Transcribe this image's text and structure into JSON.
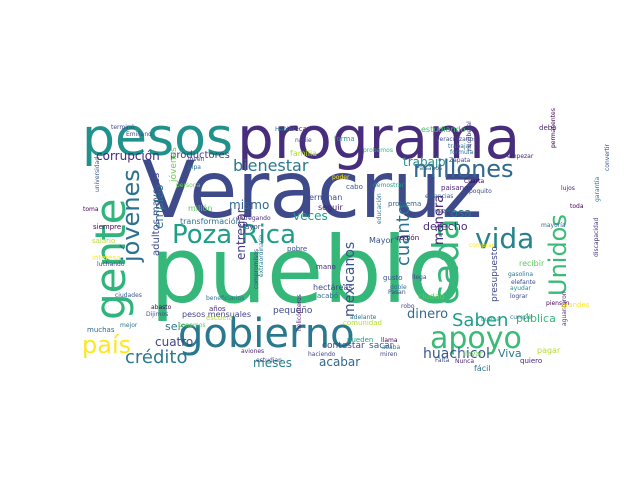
{
  "title": "",
  "words": [
    {
      "text": "pueblo",
      "color": "#35b779"
    },
    {
      "text": "Veracruz",
      "color": "#3e4a89"
    },
    {
      "text": "programa",
      "color": "#472d7b"
    },
    {
      "text": "pesos",
      "color": "#21918c"
    },
    {
      "text": "gobierno",
      "color": "#2a788e"
    },
    {
      "text": "gente",
      "color": "#2fb47c"
    },
    {
      "text": "Poza Rica",
      "color": "#1f9e89"
    },
    {
      "text": "apoyo",
      "color": "#3bbb75"
    },
    {
      "text": "jóvenes",
      "color": "#2c728e"
    },
    {
      "text": "millones",
      "color": "#31688e"
    },
    {
      "text": "bienestar",
      "color": "#2a788e"
    },
    {
      "text": "cada",
      "color": "#35b779"
    },
    {
      "text": "vida",
      "color": "#26828e"
    },
    {
      "text": "Unidos",
      "color": "#3bbb75"
    },
    {
      "text": "país",
      "color": "#fde725"
    },
    {
      "text": "Saben",
      "color": "#1f9e89"
    },
    {
      "text": "crédito",
      "color": "#2a788e"
    },
    {
      "text": "cuánto",
      "color": "#2c728e"
    },
    {
      "text": "mexicanos",
      "color": "#3b528b"
    },
    {
      "text": "huachicol",
      "color": "#38598c"
    },
    {
      "text": "corrupción",
      "color": "#482878"
    },
    {
      "text": "trabajo",
      "color": "#21918c"
    },
    {
      "text": "empleo",
      "color": "#2a788e"
    },
    {
      "text": "mismo",
      "color": "#31688e"
    },
    {
      "text": "veces",
      "color": "#1f9e89"
    },
    {
      "text": "entregar",
      "color": "#443983"
    },
    {
      "text": "dinero",
      "color": "#31688e"
    },
    {
      "text": "manera",
      "color": "#482878"
    },
    {
      "text": "cosa",
      "color": "#2c728e"
    },
    {
      "text": "derecho",
      "color": "#472d7b"
    },
    {
      "text": "cuatro",
      "color": "#414487"
    },
    {
      "text": "seis",
      "color": "#2a788e"
    },
    {
      "text": "meses",
      "color": "#26828e"
    },
    {
      "text": "acabar",
      "color": "#31688e"
    },
    {
      "text": "Viva",
      "color": "#2a788e"
    },
    {
      "text": "adultos mayores",
      "color": "#3e4a89"
    },
    {
      "text": "productores",
      "color": "#443983"
    },
    {
      "text": "familia",
      "color": "#b5de2b"
    },
    {
      "text": "pesos mensuales",
      "color": "#414487"
    },
    {
      "text": "pequeño",
      "color": "#3e4a89"
    },
    {
      "text": "contestar",
      "color": "#404688"
    },
    {
      "text": "sacar",
      "color": "#38598c"
    },
    {
      "text": "pública",
      "color": "#35b779"
    },
    {
      "text": "estudiando",
      "color": "#44bf70"
    },
    {
      "text": "presupuesto",
      "color": "#3e4a89"
    },
    {
      "text": "región",
      "color": "#440154"
    },
    {
      "text": "problema",
      "color": "#31688e"
    },
    {
      "text": "seguir",
      "color": "#481f70"
    },
    {
      "text": "terminan",
      "color": "#3e4a89"
    },
    {
      "text": "Mayor",
      "color": "#3b528b"
    },
    {
      "text": "mano",
      "color": "#482878"
    },
    {
      "text": "hectáreas",
      "color": "#3e4a89"
    },
    {
      "text": "acabó",
      "color": "#2c728e"
    },
    {
      "text": "años",
      "color": "#482878"
    },
    {
      "text": "muchas",
      "color": "#31688e"
    },
    {
      "text": "pobre",
      "color": "#3b528b"
    },
    {
      "text": "transformación",
      "color": "#2c728e"
    },
    {
      "text": "millón",
      "color": "#5ec962"
    },
    {
      "text": "siempre",
      "color": "#440154"
    },
    {
      "text": "jóvenes",
      "color": "#6ccd5a"
    },
    {
      "text": "pueden",
      "color": "#1f9e89"
    },
    {
      "text": "llama",
      "color": "#440154"
    },
    {
      "text": "acaba",
      "color": "#2c728e"
    },
    {
      "text": "miren",
      "color": "#414487"
    },
    {
      "text": "haciendo",
      "color": "#404688"
    },
    {
      "text": "estudian",
      "color": "#414487"
    },
    {
      "text": "fácil",
      "color": "#2c728e"
    },
    {
      "text": "quiero",
      "color": "#482878"
    },
    {
      "text": "pagar",
      "color": "#b5de2b"
    },
    {
      "text": "llevar",
      "color": "#6ccd5a"
    },
    {
      "text": "Falta",
      "color": "#3b528b"
    },
    {
      "text": "Nunca",
      "color": "#481f70"
    },
    {
      "text": "cumplir",
      "color": "#2c728e"
    },
    {
      "text": "lograr",
      "color": "#3e4a89"
    },
    {
      "text": "ayudar",
      "color": "#21918c"
    },
    {
      "text": "gasolina",
      "color": "#2a788e"
    },
    {
      "text": "elefante",
      "color": "#3e4a89"
    },
    {
      "text": "recibir",
      "color": "#5ec962"
    },
    {
      "text": "discapacidad",
      "color": "#472d7b"
    },
    {
      "text": "mayoría",
      "color": "#31688e"
    },
    {
      "text": "toda",
      "color": "#440154"
    },
    {
      "text": "lujos",
      "color": "#481f70"
    },
    {
      "text": "paisanos",
      "color": "#482878"
    },
    {
      "text": "cabo",
      "color": "#3b528b"
    },
    {
      "text": "poder",
      "color": "#fde725"
    },
    {
      "text": "beca",
      "color": "#472d7b"
    },
    {
      "text": "debo",
      "color": "#481f70"
    },
    {
      "text": "Emiliano",
      "color": "#404688"
    },
    {
      "text": "Zapata",
      "color": "#414487"
    },
    {
      "text": "fórmula",
      "color": "#2a788e"
    },
    {
      "text": "trabajar",
      "color": "#2c728e"
    },
    {
      "text": "Cuarta",
      "color": "#440154"
    },
    {
      "text": "veracruzanos",
      "color": "#3b528b"
    },
    {
      "text": "permanentes",
      "color": "#440154"
    },
    {
      "text": "garantía",
      "color": "#2c728e"
    },
    {
      "text": "convertir",
      "color": "#3b528b"
    },
    {
      "text": "empezar",
      "color": "#481f70"
    },
    {
      "text": "neoliberal",
      "color": "#404688"
    },
    {
      "text": "terminó",
      "color": "#404688"
    },
    {
      "text": "joven",
      "color": "#414487"
    },
    {
      "text": "pipa",
      "color": "#2c728e"
    },
    {
      "text": "universidad",
      "color": "#38598c"
    },
    {
      "text": "toma",
      "color": "#440154"
    },
    {
      "text": "salario",
      "color": "#b5de2b"
    },
    {
      "text": "interesa",
      "color": "#fde725"
    },
    {
      "text": "luchando",
      "color": "#3e4a89"
    },
    {
      "text": "ciudades",
      "color": "#38598c"
    },
    {
      "text": "mejor",
      "color": "#2c728e"
    },
    {
      "text": "abasto",
      "color": "#440154"
    },
    {
      "text": "beneficiarios",
      "color": "#2c728e"
    },
    {
      "text": "extraordinario",
      "color": "#2a788e"
    },
    {
      "text": "compromisos",
      "color": "#3e4a89"
    },
    {
      "text": "helicópteros",
      "color": "#481f70"
    },
    {
      "text": "entregando",
      "color": "#482878"
    },
    {
      "text": "gusto",
      "color": "#3b528b"
    },
    {
      "text": "doble",
      "color": "#2c728e"
    },
    {
      "text": "Pasan",
      "color": "#404688"
    },
    {
      "text": "ciudad",
      "color": "#5ec962"
    },
    {
      "text": "llega",
      "color": "#404688"
    },
    {
      "text": "robo",
      "color": "#3e4a89"
    },
    {
      "text": "adelante",
      "color": "#2c728e"
    },
    {
      "text": "ponemos",
      "color": "#5ec962"
    },
    {
      "text": "escuela",
      "color": "#b5de2b"
    },
    {
      "text": "Hablar",
      "color": "#2c728e"
    },
    {
      "text": "nadie",
      "color": "#404688"
    },
    {
      "text": "forma",
      "color": "#1f9e89"
    },
    {
      "text": "probamos",
      "color": "#35b779"
    },
    {
      "text": "Paisanos",
      "color": "#31688e"
    },
    {
      "text": "educación",
      "color": "#2a788e"
    },
    {
      "text": "demostrar",
      "color": "#1f9e89"
    },
    {
      "text": "persona",
      "color": "#6ccd5a"
    },
    {
      "text": "Dijimos",
      "color": "#3b528b"
    },
    {
      "text": "aviones",
      "color": "#481f70"
    },
    {
      "text": "comunidad",
      "color": "#b5de2b"
    },
    {
      "text": "comprar",
      "color": "#fde725"
    },
    {
      "text": "piensen",
      "color": "#440154"
    },
    {
      "text": "aguantaron",
      "color": "#472d7b"
    },
    {
      "text": "grandes",
      "color": "#fde725"
    },
    {
      "text": "vez",
      "color": "#404688"
    },
    {
      "text": "buena",
      "color": "#1f9e89"
    },
    {
      "text": "poquito",
      "color": "#3e4a89"
    },
    {
      "text": "estancias",
      "color": "#38598c"
    },
    {
      "text": "Mayor",
      "color": "#414487"
    }
  ]
}
